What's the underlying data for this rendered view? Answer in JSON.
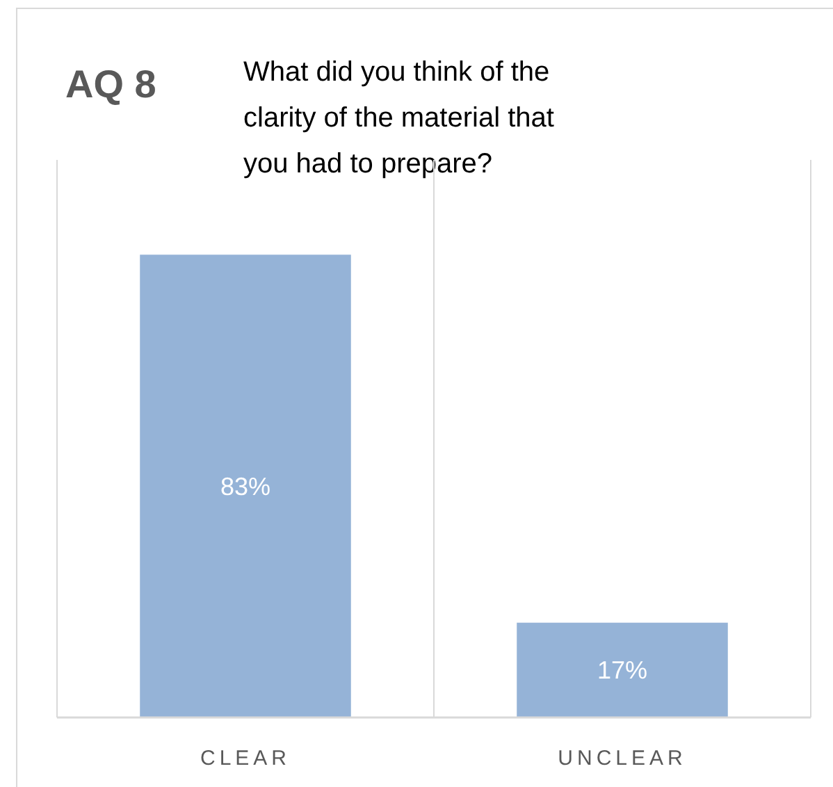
{
  "chart_data": {
    "type": "bar",
    "title": "AQ 8",
    "subtitle": "What did you think of the clarity of the material that you had to prepare?",
    "categories": [
      "CLEAR",
      "UNCLEAR"
    ],
    "values": [
      83,
      17
    ],
    "color": "#95b3d7",
    "ylim": [
      0,
      100
    ],
    "data_labels": true,
    "value_labels": [
      "83%",
      "17%"
    ],
    "grid": "x",
    "tick_labels": "x"
  }
}
